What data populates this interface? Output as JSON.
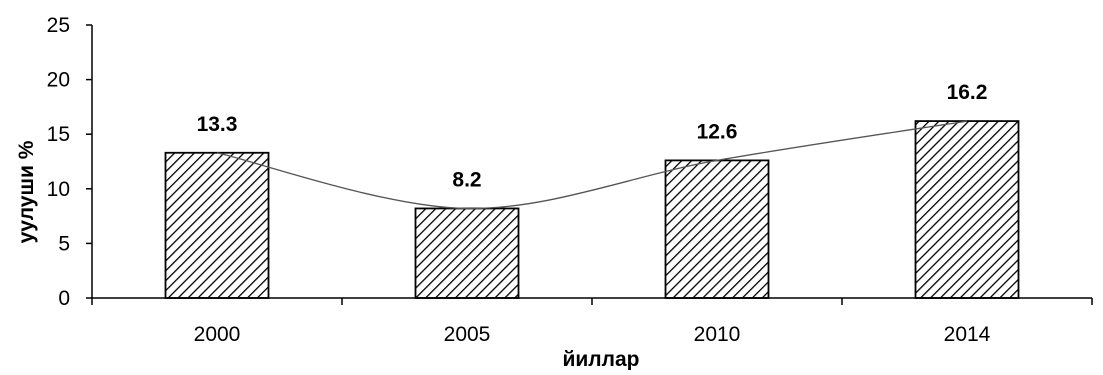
{
  "chart_data": {
    "type": "bar",
    "categories": [
      "2000",
      "2005",
      "2010",
      "2014"
    ],
    "values": [
      13.3,
      8.2,
      12.6,
      16.2
    ],
    "data_labels": [
      "13.3",
      "8.2",
      "12.6",
      "16.2"
    ],
    "title": "",
    "xlabel": "йиллар",
    "ylabel": "уулуши %",
    "ylim": [
      0,
      25
    ],
    "yticks": [
      "0",
      "5",
      "10",
      "15",
      "20",
      "25"
    ],
    "grid": false,
    "bar_fill": "diagonal-hatch",
    "trendline": "smooth",
    "colors": {
      "bar_stroke": "#000000",
      "hatch": "#000000",
      "trendline": "#555555"
    }
  }
}
